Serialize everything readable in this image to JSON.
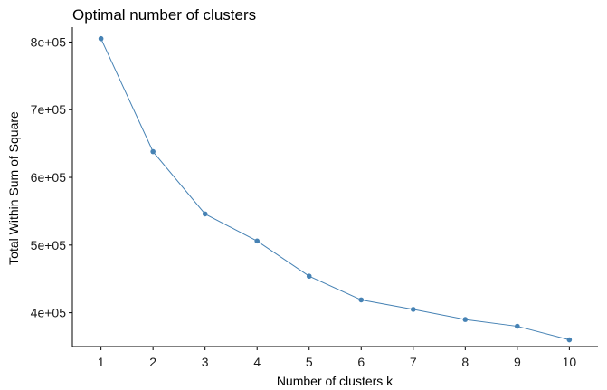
{
  "chart_data": {
    "type": "line",
    "title": "Optimal number of clusters",
    "xlabel": "Number of clusters k",
    "ylabel": "Total Within Sum of Square",
    "x": [
      1,
      2,
      3,
      4,
      5,
      6,
      7,
      8,
      9,
      10
    ],
    "x_tick_labels": [
      "1",
      "2",
      "3",
      "4",
      "5",
      "6",
      "7",
      "8",
      "9",
      "10"
    ],
    "y_ticks": [
      400000,
      500000,
      600000,
      700000,
      800000
    ],
    "y_tick_labels": [
      "4e+05",
      "5e+05",
      "6e+05",
      "7e+05",
      "8e+05"
    ],
    "series": [
      {
        "values": [
          805000,
          638000,
          546000,
          506000,
          454000,
          419000,
          405000,
          390000,
          380000,
          360000
        ]
      }
    ],
    "xlim": [
      0.45,
      10.55
    ],
    "ylim": [
      350000,
      822000
    ],
    "grid": false,
    "legend": "none",
    "colors": {
      "series": "#4682B4",
      "axis": "#000000"
    }
  }
}
